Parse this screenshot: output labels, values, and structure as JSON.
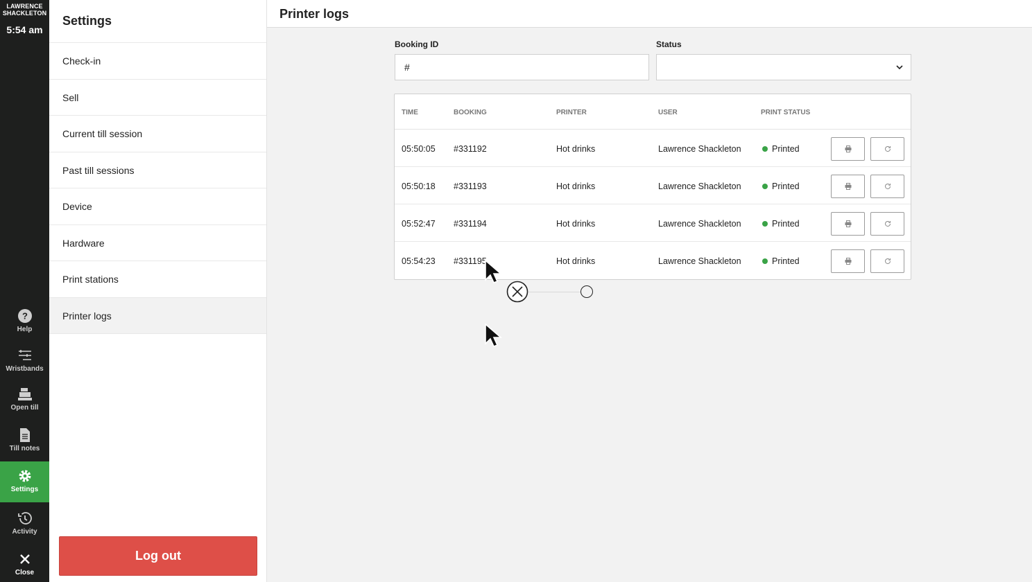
{
  "rail": {
    "user_line1": "LAWRENCE",
    "user_line2": "SHACKLETON",
    "time": "5:54 am",
    "items": [
      {
        "label": "Help",
        "icon": "help-icon"
      },
      {
        "label": "Wristbands",
        "icon": "wristbands-icon"
      },
      {
        "label": "Open till",
        "icon": "till-icon"
      },
      {
        "label": "Till notes",
        "icon": "notes-icon"
      },
      {
        "label": "Settings",
        "icon": "gear-icon",
        "active": true
      },
      {
        "label": "Activity",
        "icon": "history-icon"
      },
      {
        "label": "Close",
        "icon": "close-icon"
      }
    ],
    "accent": "#3aa347"
  },
  "settings": {
    "title": "Settings",
    "items": [
      {
        "label": "Check-in"
      },
      {
        "label": "Sell"
      },
      {
        "label": "Current till session"
      },
      {
        "label": "Past till sessions"
      },
      {
        "label": "Device"
      },
      {
        "label": "Hardware"
      },
      {
        "label": "Print stations"
      },
      {
        "label": "Printer logs",
        "active": true
      }
    ],
    "logout_label": "Log out",
    "logout_color": "#de4f48"
  },
  "main": {
    "title": "Printer logs",
    "booking_label": "Booking ID",
    "booking_value": "#",
    "status_label": "Status",
    "status_value": "",
    "columns": {
      "time": "TIME",
      "booking": "BOOKING",
      "printer": "PRINTER",
      "user": "USER",
      "status": "PRINT STATUS"
    },
    "rows": [
      {
        "time": "05:50:05",
        "booking": "#331192",
        "printer": "Hot drinks",
        "user": "Lawrence Shackleton",
        "status": "Printed"
      },
      {
        "time": "05:50:18",
        "booking": "#331193",
        "printer": "Hot drinks",
        "user": "Lawrence Shackleton",
        "status": "Printed"
      },
      {
        "time": "05:52:47",
        "booking": "#331194",
        "printer": "Hot drinks",
        "user": "Lawrence Shackleton",
        "status": "Printed"
      },
      {
        "time": "05:54:23",
        "booking": "#331195",
        "printer": "Hot drinks",
        "user": "Lawrence Shackleton",
        "status": "Printed"
      }
    ],
    "status_color": "#3aa347"
  }
}
